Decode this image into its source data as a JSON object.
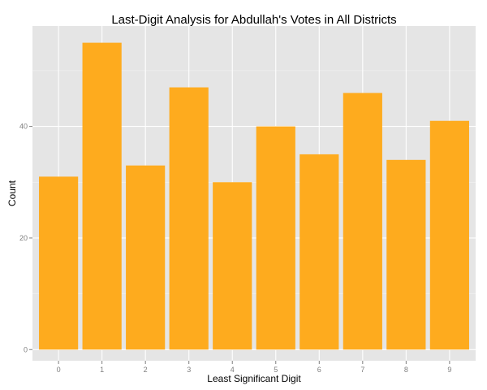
{
  "chart_data": {
    "type": "bar",
    "title": "Last-Digit Analysis for Abdullah's Votes in All Districts",
    "xlabel": "Least Significant Digit",
    "ylabel": "Count",
    "categories": [
      "0",
      "1",
      "2",
      "3",
      "4",
      "5",
      "6",
      "7",
      "8",
      "9"
    ],
    "values": [
      31,
      55,
      33,
      47,
      30,
      40,
      35,
      46,
      34,
      41
    ],
    "ylim": [
      -2,
      58
    ],
    "y_ticks": [
      0,
      20,
      40
    ],
    "y_tick_labels": [
      "0",
      "20",
      "40"
    ],
    "grid": true,
    "bar_color": "#feab1e",
    "panel_color": "#e5e5e5",
    "legend": "none"
  }
}
